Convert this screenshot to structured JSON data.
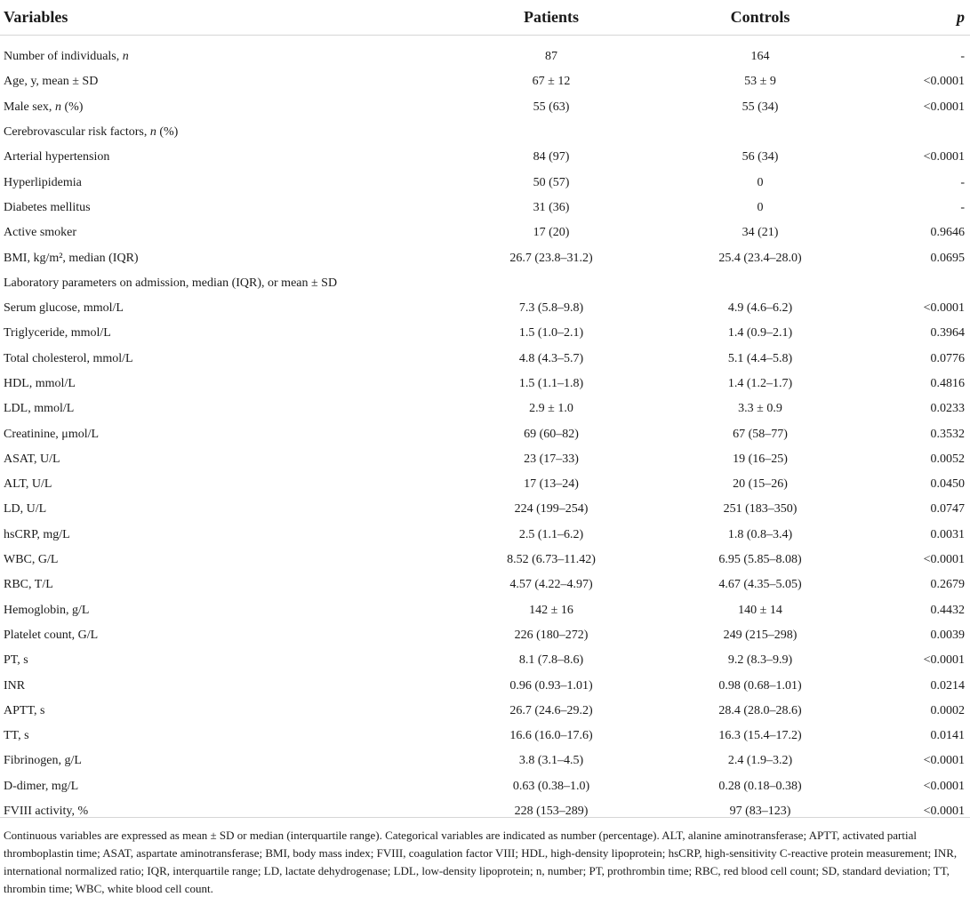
{
  "table": {
    "headers": [
      "Variables",
      "Patients",
      "Controls",
      "p"
    ],
    "rows": [
      [
        "Number of individuals, n",
        "87",
        "164",
        "-"
      ],
      [
        "Age, y, mean ± SD",
        "67 ± 12",
        "53 ± 9",
        "<0.0001"
      ],
      [
        "Male sex, n (%)",
        "55 (63)",
        "55 (34)",
        "<0.0001"
      ],
      [
        "Cerebrovascular risk factors, n (%)",
        "",
        "",
        ""
      ],
      [
        "Arterial hypertension",
        "84 (97)",
        "56 (34)",
        "<0.0001"
      ],
      [
        "Hyperlipidemia",
        "50 (57)",
        "0",
        "-"
      ],
      [
        "Diabetes mellitus",
        "31 (36)",
        "0",
        "-"
      ],
      [
        "Active smoker",
        "17 (20)",
        "34 (21)",
        "0.9646"
      ],
      [
        "BMI, kg/m², median (IQR)",
        "26.7 (23.8–31.2)",
        "25.4 (23.4–28.0)",
        "0.0695"
      ],
      [
        "Laboratory parameters on admission, median (IQR), or mean ± SD",
        "",
        "",
        ""
      ],
      [
        "Serum glucose, mmol/L",
        "7.3 (5.8–9.8)",
        "4.9 (4.6–6.2)",
        "<0.0001"
      ],
      [
        "Triglyceride, mmol/L",
        "1.5 (1.0–2.1)",
        "1.4 (0.9–2.1)",
        "0.3964"
      ],
      [
        "Total cholesterol, mmol/L",
        "4.8 (4.3–5.7)",
        "5.1 (4.4–5.8)",
        "0.0776"
      ],
      [
        "HDL, mmol/L",
        "1.5 (1.1–1.8)",
        "1.4 (1.2–1.7)",
        "0.4816"
      ],
      [
        "LDL, mmol/L",
        "2.9 ± 1.0",
        "3.3 ± 0.9",
        "0.0233"
      ],
      [
        "Creatinine, μmol/L",
        "69 (60–82)",
        "67 (58–77)",
        "0.3532"
      ],
      [
        "ASAT, U/L",
        "23 (17–33)",
        "19 (16–25)",
        "0.0052"
      ],
      [
        "ALT, U/L",
        "17 (13–24)",
        "20 (15–26)",
        "0.0450"
      ],
      [
        "LD, U/L",
        "224 (199–254)",
        "251 (183–350)",
        "0.0747"
      ],
      [
        "hsCRP, mg/L",
        "2.5 (1.1–6.2)",
        "1.8 (0.8–3.4)",
        "0.0031"
      ],
      [
        "WBC, G/L",
        "8.52 (6.73–11.42)",
        "6.95 (5.85–8.08)",
        "<0.0001"
      ],
      [
        "RBC, T/L",
        "4.57 (4.22–4.97)",
        "4.67 (4.35–5.05)",
        "0.2679"
      ],
      [
        "Hemoglobin, g/L",
        "142 ± 16",
        "140 ± 14",
        "0.4432"
      ],
      [
        "Platelet count, G/L",
        "226 (180–272)",
        "249 (215–298)",
        "0.0039"
      ],
      [
        "PT, s",
        "8.1 (7.8–8.6)",
        "9.2 (8.3–9.9)",
        "<0.0001"
      ],
      [
        "INR",
        "0.96 (0.93–1.01)",
        "0.98 (0.68–1.01)",
        "0.0214"
      ],
      [
        "APTT, s",
        "26.7 (24.6–29.2)",
        "28.4 (28.0–28.6)",
        "0.0002"
      ],
      [
        "TT, s",
        "16.6 (16.0–17.6)",
        "16.3 (15.4–17.2)",
        "0.0141"
      ],
      [
        "Fibrinogen, g/L",
        "3.8 (3.1–4.5)",
        "2.4 (1.9–3.2)",
        "<0.0001"
      ],
      [
        "D-dimer, mg/L",
        "0.63 (0.38–1.0)",
        "0.28 (0.18–0.38)",
        "<0.0001"
      ],
      [
        "FVIII activity, %",
        "228 (153–289)",
        "97 (83–123)",
        "<0.0001"
      ]
    ]
  },
  "footnote": "Continuous variables are expressed as mean ± SD or median (interquartile range). Categorical variables are indicated as number (percentage). ALT, alanine aminotransferase; APTT, activated partial thromboplastin time; ASAT, aspartate aminotransferase; BMI, body mass index; FVIII, coagulation factor VIII; HDL, high-density lipoprotein; hsCRP, high-sensitivity C-reactive protein measurement; INR, international normalized ratio; IQR, interquartile range; LD, lactate dehydrogenase; LDL, low-density lipoprotein; n, number; PT, prothrombin time; RBC, red blood cell count; SD, standard deviation; TT, thrombin time; WBC, white blood cell count."
}
